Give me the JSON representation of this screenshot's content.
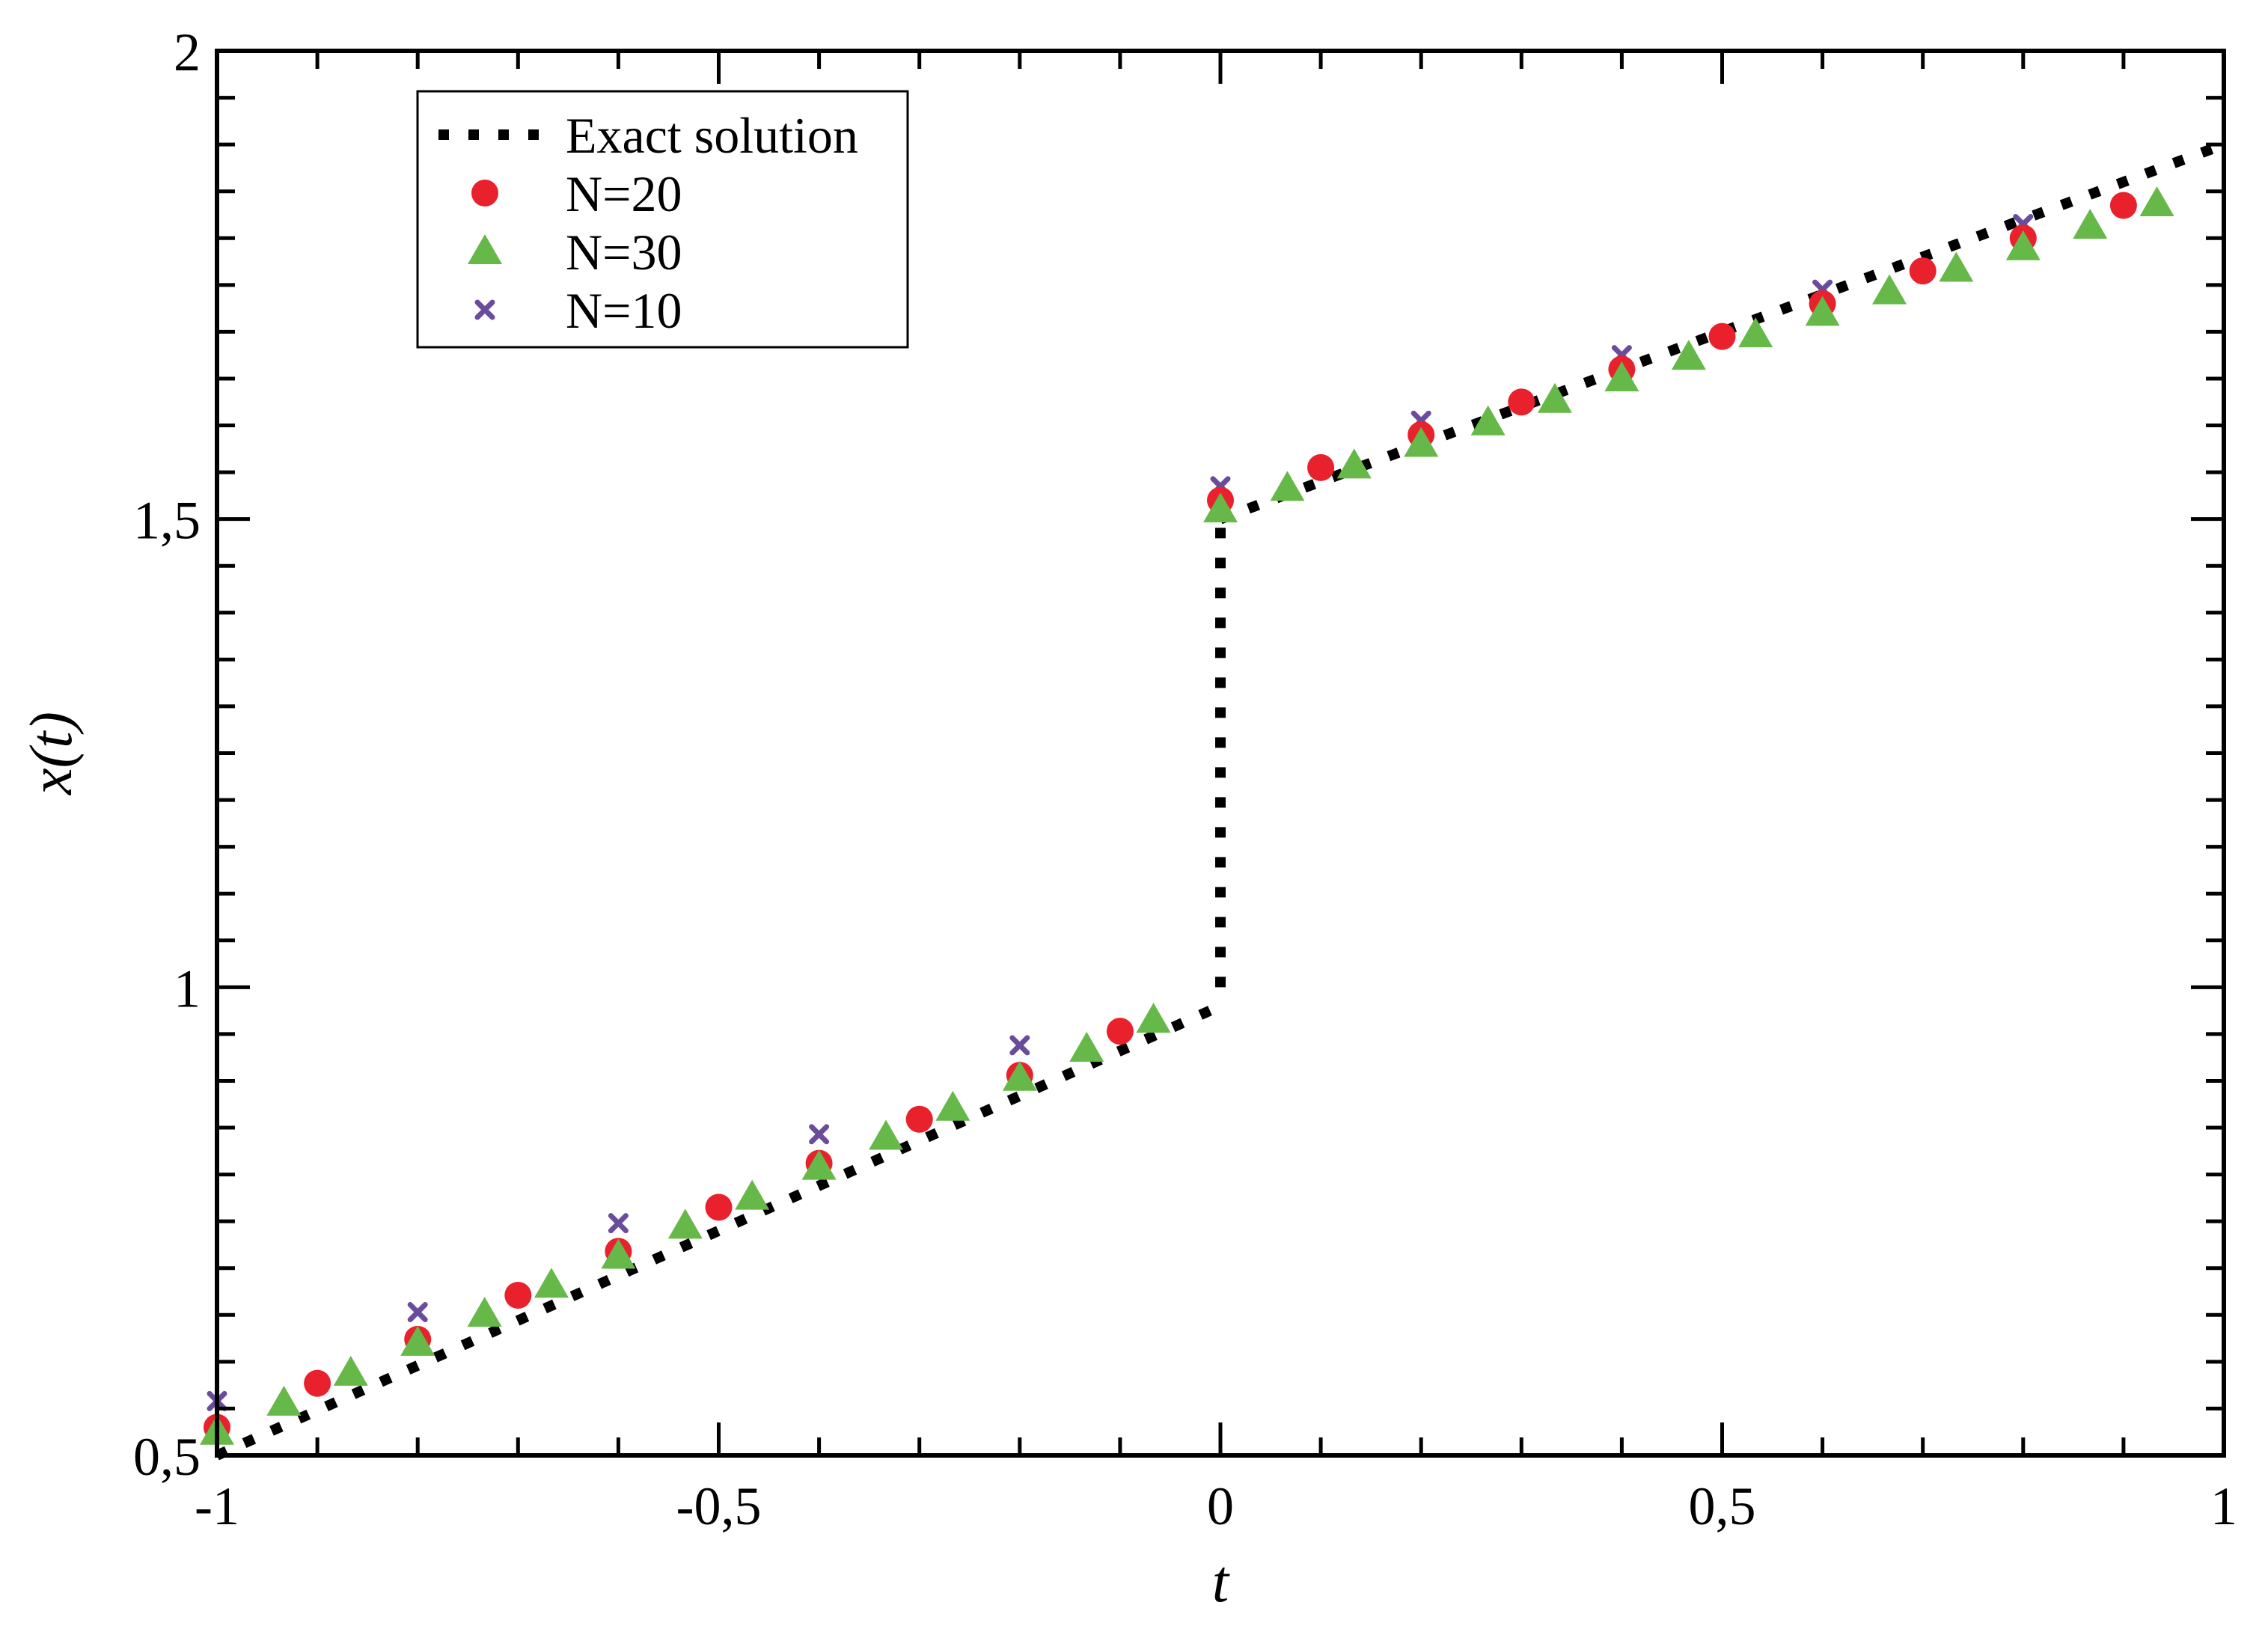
{
  "chart_data": {
    "type": "scatter",
    "title": "",
    "xlabel": "t",
    "ylabel": "x(t)",
    "xlim": [
      -1,
      1
    ],
    "ylim": [
      0.5,
      2
    ],
    "x_ticks": [
      {
        "value": -1,
        "label": "-1"
      },
      {
        "value": -0.5,
        "label": "-0,5"
      },
      {
        "value": 0,
        "label": "0"
      },
      {
        "value": 0.5,
        "label": "0,5"
      },
      {
        "value": 1,
        "label": "1"
      }
    ],
    "y_ticks": [
      {
        "value": 0.5,
        "label": "0,5"
      },
      {
        "value": 1,
        "label": "1"
      },
      {
        "value": 1.5,
        "label": "1,5"
      },
      {
        "value": 2,
        "label": "2"
      }
    ],
    "grid": false,
    "legend_position": "top-left",
    "series": [
      {
        "name": "Exact solution",
        "style": "dotted-line",
        "color": "#000000",
        "segments": [
          {
            "x": [
              -1,
              0
            ],
            "y": [
              0.5,
              0.98
            ]
          },
          {
            "x": [
              0,
              0
            ],
            "y": [
              1.0,
              1.5
            ]
          },
          {
            "x": [
              0,
              1
            ],
            "y": [
              1.5,
              1.9
            ]
          }
        ]
      },
      {
        "name": "N=20",
        "marker": "circle",
        "color": "#e8212c",
        "x": [
          -1,
          -0.9,
          -0.8,
          -0.7,
          -0.6,
          -0.5,
          -0.4,
          -0.3,
          -0.2,
          -0.1,
          0,
          0.1,
          0.2,
          0.3,
          0.4,
          0.5,
          0.6,
          0.7,
          0.8,
          0.9
        ],
        "y": [
          0.53,
          0.577,
          0.624,
          0.671,
          0.718,
          0.765,
          0.812,
          0.859,
          0.906,
          0.953,
          1.52,
          1.555,
          1.59,
          1.625,
          1.66,
          1.695,
          1.73,
          1.765,
          1.8,
          1.835
        ]
      },
      {
        "name": "N=30",
        "marker": "triangle",
        "color": "#66b848",
        "x": [
          -1,
          -0.9333,
          -0.8667,
          -0.8,
          -0.7333,
          -0.6667,
          -0.6,
          -0.5333,
          -0.4667,
          -0.4,
          -0.3333,
          -0.2667,
          -0.2,
          -0.1333,
          -0.0667,
          0,
          0.0667,
          0.1333,
          0.2,
          0.2667,
          0.3333,
          0.4,
          0.4667,
          0.5333,
          0.6,
          0.6667,
          0.7333,
          0.8,
          0.8667,
          0.9333
        ],
        "y": [
          0.525,
          0.556,
          0.588,
          0.62,
          0.651,
          0.682,
          0.713,
          0.745,
          0.776,
          0.808,
          0.84,
          0.871,
          0.903,
          0.934,
          0.965,
          1.51,
          1.533,
          1.557,
          1.58,
          1.603,
          1.627,
          1.65,
          1.673,
          1.697,
          1.72,
          1.743,
          1.767,
          1.79,
          1.813,
          1.837
        ]
      },
      {
        "name": "N=10",
        "marker": "x",
        "color": "#6a4c9c",
        "x": [
          -1,
          -0.8,
          -0.6,
          -0.4,
          -0.2,
          0,
          0.2,
          0.4,
          0.6,
          0.8
        ],
        "y": [
          0.558,
          0.653,
          0.748,
          0.843,
          0.938,
          1.535,
          1.605,
          1.675,
          1.745,
          1.815
        ]
      }
    ]
  }
}
